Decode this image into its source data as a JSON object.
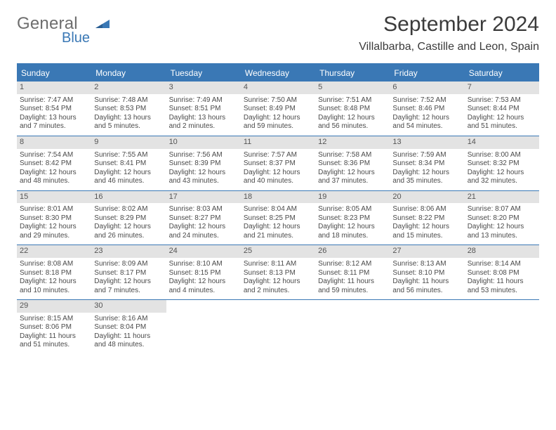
{
  "brand": {
    "top": "General",
    "bottom": "Blue"
  },
  "title": {
    "month": "September 2024",
    "location": "Villalbarba, Castille and Leon, Spain"
  },
  "colors": {
    "accent": "#3a78b5",
    "header_bg": "#3a78b5",
    "header_text": "#ffffff",
    "daynum_bg": "#e3e3e3",
    "rule": "#3a78b5",
    "body_text": "#4a4a4a"
  },
  "weekday_headers": [
    "Sunday",
    "Monday",
    "Tuesday",
    "Wednesday",
    "Thursday",
    "Friday",
    "Saturday"
  ],
  "weeks": [
    [
      {
        "n": "1",
        "sunrise": "Sunrise: 7:47 AM",
        "sunset": "Sunset: 8:54 PM",
        "day1": "Daylight: 13 hours",
        "day2": "and 7 minutes."
      },
      {
        "n": "2",
        "sunrise": "Sunrise: 7:48 AM",
        "sunset": "Sunset: 8:53 PM",
        "day1": "Daylight: 13 hours",
        "day2": "and 5 minutes."
      },
      {
        "n": "3",
        "sunrise": "Sunrise: 7:49 AM",
        "sunset": "Sunset: 8:51 PM",
        "day1": "Daylight: 13 hours",
        "day2": "and 2 minutes."
      },
      {
        "n": "4",
        "sunrise": "Sunrise: 7:50 AM",
        "sunset": "Sunset: 8:49 PM",
        "day1": "Daylight: 12 hours",
        "day2": "and 59 minutes."
      },
      {
        "n": "5",
        "sunrise": "Sunrise: 7:51 AM",
        "sunset": "Sunset: 8:48 PM",
        "day1": "Daylight: 12 hours",
        "day2": "and 56 minutes."
      },
      {
        "n": "6",
        "sunrise": "Sunrise: 7:52 AM",
        "sunset": "Sunset: 8:46 PM",
        "day1": "Daylight: 12 hours",
        "day2": "and 54 minutes."
      },
      {
        "n": "7",
        "sunrise": "Sunrise: 7:53 AM",
        "sunset": "Sunset: 8:44 PM",
        "day1": "Daylight: 12 hours",
        "day2": "and 51 minutes."
      }
    ],
    [
      {
        "n": "8",
        "sunrise": "Sunrise: 7:54 AM",
        "sunset": "Sunset: 8:42 PM",
        "day1": "Daylight: 12 hours",
        "day2": "and 48 minutes."
      },
      {
        "n": "9",
        "sunrise": "Sunrise: 7:55 AM",
        "sunset": "Sunset: 8:41 PM",
        "day1": "Daylight: 12 hours",
        "day2": "and 46 minutes."
      },
      {
        "n": "10",
        "sunrise": "Sunrise: 7:56 AM",
        "sunset": "Sunset: 8:39 PM",
        "day1": "Daylight: 12 hours",
        "day2": "and 43 minutes."
      },
      {
        "n": "11",
        "sunrise": "Sunrise: 7:57 AM",
        "sunset": "Sunset: 8:37 PM",
        "day1": "Daylight: 12 hours",
        "day2": "and 40 minutes."
      },
      {
        "n": "12",
        "sunrise": "Sunrise: 7:58 AM",
        "sunset": "Sunset: 8:36 PM",
        "day1": "Daylight: 12 hours",
        "day2": "and 37 minutes."
      },
      {
        "n": "13",
        "sunrise": "Sunrise: 7:59 AM",
        "sunset": "Sunset: 8:34 PM",
        "day1": "Daylight: 12 hours",
        "day2": "and 35 minutes."
      },
      {
        "n": "14",
        "sunrise": "Sunrise: 8:00 AM",
        "sunset": "Sunset: 8:32 PM",
        "day1": "Daylight: 12 hours",
        "day2": "and 32 minutes."
      }
    ],
    [
      {
        "n": "15",
        "sunrise": "Sunrise: 8:01 AM",
        "sunset": "Sunset: 8:30 PM",
        "day1": "Daylight: 12 hours",
        "day2": "and 29 minutes."
      },
      {
        "n": "16",
        "sunrise": "Sunrise: 8:02 AM",
        "sunset": "Sunset: 8:29 PM",
        "day1": "Daylight: 12 hours",
        "day2": "and 26 minutes."
      },
      {
        "n": "17",
        "sunrise": "Sunrise: 8:03 AM",
        "sunset": "Sunset: 8:27 PM",
        "day1": "Daylight: 12 hours",
        "day2": "and 24 minutes."
      },
      {
        "n": "18",
        "sunrise": "Sunrise: 8:04 AM",
        "sunset": "Sunset: 8:25 PM",
        "day1": "Daylight: 12 hours",
        "day2": "and 21 minutes."
      },
      {
        "n": "19",
        "sunrise": "Sunrise: 8:05 AM",
        "sunset": "Sunset: 8:23 PM",
        "day1": "Daylight: 12 hours",
        "day2": "and 18 minutes."
      },
      {
        "n": "20",
        "sunrise": "Sunrise: 8:06 AM",
        "sunset": "Sunset: 8:22 PM",
        "day1": "Daylight: 12 hours",
        "day2": "and 15 minutes."
      },
      {
        "n": "21",
        "sunrise": "Sunrise: 8:07 AM",
        "sunset": "Sunset: 8:20 PM",
        "day1": "Daylight: 12 hours",
        "day2": "and 13 minutes."
      }
    ],
    [
      {
        "n": "22",
        "sunrise": "Sunrise: 8:08 AM",
        "sunset": "Sunset: 8:18 PM",
        "day1": "Daylight: 12 hours",
        "day2": "and 10 minutes."
      },
      {
        "n": "23",
        "sunrise": "Sunrise: 8:09 AM",
        "sunset": "Sunset: 8:17 PM",
        "day1": "Daylight: 12 hours",
        "day2": "and 7 minutes."
      },
      {
        "n": "24",
        "sunrise": "Sunrise: 8:10 AM",
        "sunset": "Sunset: 8:15 PM",
        "day1": "Daylight: 12 hours",
        "day2": "and 4 minutes."
      },
      {
        "n": "25",
        "sunrise": "Sunrise: 8:11 AM",
        "sunset": "Sunset: 8:13 PM",
        "day1": "Daylight: 12 hours",
        "day2": "and 2 minutes."
      },
      {
        "n": "26",
        "sunrise": "Sunrise: 8:12 AM",
        "sunset": "Sunset: 8:11 PM",
        "day1": "Daylight: 11 hours",
        "day2": "and 59 minutes."
      },
      {
        "n": "27",
        "sunrise": "Sunrise: 8:13 AM",
        "sunset": "Sunset: 8:10 PM",
        "day1": "Daylight: 11 hours",
        "day2": "and 56 minutes."
      },
      {
        "n": "28",
        "sunrise": "Sunrise: 8:14 AM",
        "sunset": "Sunset: 8:08 PM",
        "day1": "Daylight: 11 hours",
        "day2": "and 53 minutes."
      }
    ],
    [
      {
        "n": "29",
        "sunrise": "Sunrise: 8:15 AM",
        "sunset": "Sunset: 8:06 PM",
        "day1": "Daylight: 11 hours",
        "day2": "and 51 minutes."
      },
      {
        "n": "30",
        "sunrise": "Sunrise: 8:16 AM",
        "sunset": "Sunset: 8:04 PM",
        "day1": "Daylight: 11 hours",
        "day2": "and 48 minutes."
      },
      {
        "empty": true
      },
      {
        "empty": true
      },
      {
        "empty": true
      },
      {
        "empty": true
      },
      {
        "empty": true
      }
    ]
  ]
}
